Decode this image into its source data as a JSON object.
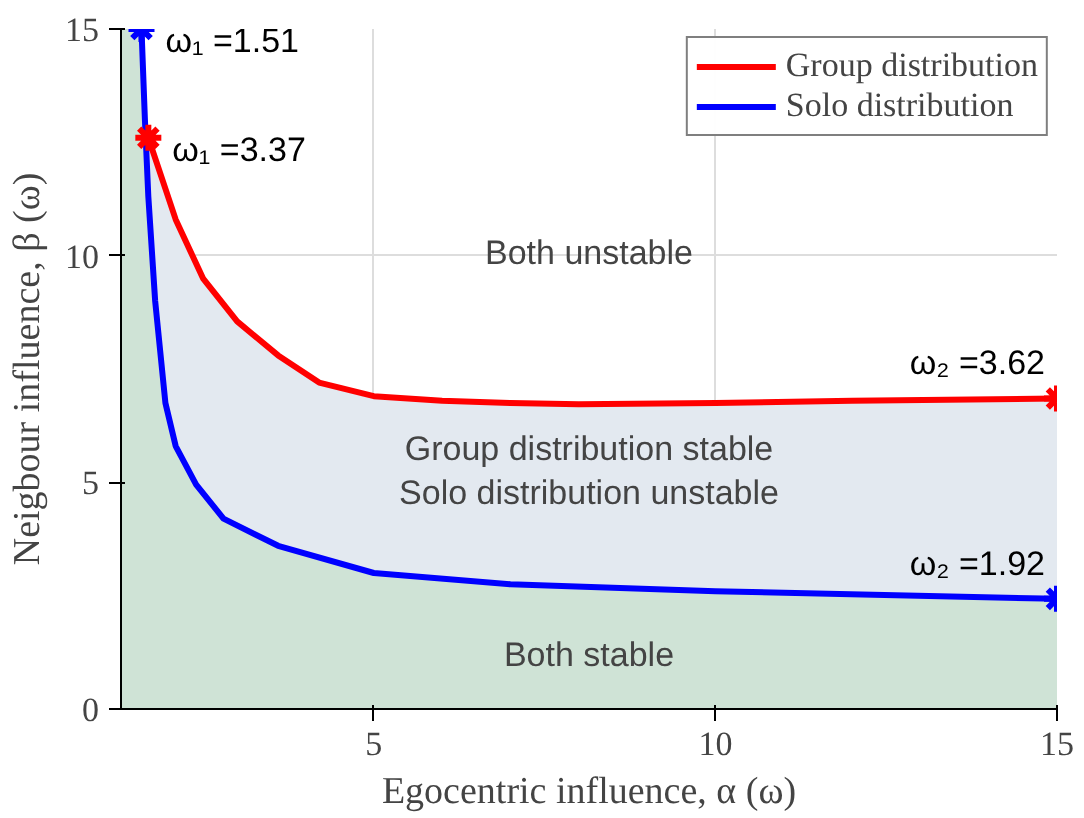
{
  "chart_data": {
    "type": "line",
    "xlabel": "Egocentric influence, α (ω)",
    "ylabel": "Neigbour influence, β (ω)",
    "xlim": [
      1.3,
      15
    ],
    "ylim": [
      0,
      15
    ],
    "xticks": [
      5,
      10,
      15
    ],
    "yticks": [
      0,
      5,
      10,
      15
    ],
    "grid": true,
    "legend": "top right",
    "line_style": "solid",
    "series": [
      {
        "name": "Group distribution",
        "color": "#ff0000",
        "x": [
          1.7,
          2.1,
          2.5,
          3.0,
          3.6,
          4.2,
          5,
          6,
          7,
          8,
          10,
          12,
          15
        ],
        "values": [
          12.6,
          10.8,
          9.5,
          8.55,
          7.8,
          7.2,
          6.9,
          6.8,
          6.75,
          6.72,
          6.75,
          6.8,
          6.85
        ]
      },
      {
        "name": "Solo distribution",
        "color": "#0000ff",
        "x": [
          1.6,
          1.65,
          1.7,
          1.8,
          1.95,
          2.1,
          2.4,
          2.8,
          3.6,
          5,
          7,
          10,
          15
        ],
        "values": [
          15,
          13,
          11.3,
          9,
          6.75,
          5.8,
          4.95,
          4.2,
          3.6,
          3.0,
          2.75,
          2.6,
          2.43
        ]
      },
      {
        "type": "scatter",
        "marker": "cross",
        "color": "#ff0000",
        "x": [
          1.7,
          15
        ],
        "values": [
          12.6,
          6.85
        ]
      },
      {
        "type": "scatter",
        "marker": "cross",
        "color": "#0000ff",
        "x": [
          1.6,
          15
        ],
        "values": [
          15,
          2.43
        ]
      }
    ],
    "annotations": [
      {
        "text": "ω₁ =1.51",
        "x": 1.6,
        "y": 15
      },
      {
        "text": "ω₁ =3.37",
        "x": 1.7,
        "y": 12.6
      },
      {
        "text": "ω₂ =3.62",
        "x": 15,
        "y": 6.85
      },
      {
        "text": "ω₂ =1.92",
        "x": 15,
        "y": 2.43
      },
      "Both unstable",
      "Group distribution stable\nSolo distribution unstable",
      "Both stable"
    ]
  }
}
